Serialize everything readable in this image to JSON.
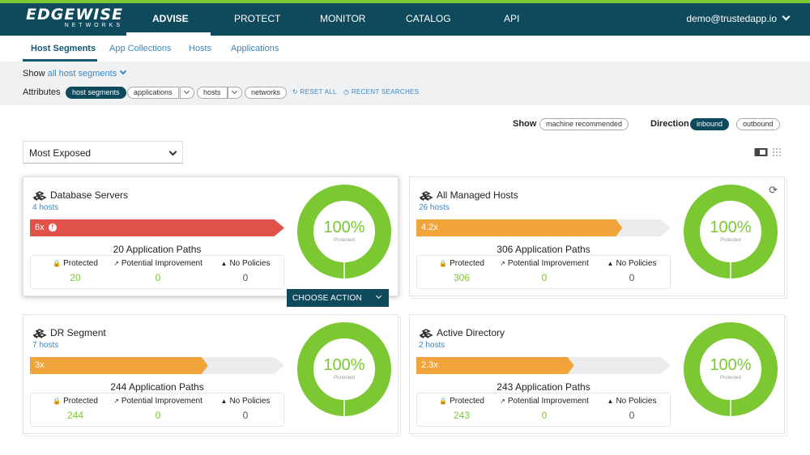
{
  "logo": {
    "name": "EDGEWISE",
    "sub": "NETWORKS"
  },
  "nav": {
    "items": [
      "ADVISE",
      "PROTECT",
      "MONITOR",
      "CATALOG",
      "API"
    ],
    "active": "ADVISE",
    "user": "demo@trustedapp.io"
  },
  "subtabs": [
    "Host Segments",
    "App Collections",
    "Hosts",
    "Applications"
  ],
  "filters": {
    "show_label": "Show",
    "show_value": "all host segments",
    "attributes_label": "Attributes",
    "pills": [
      "host segments",
      "applications",
      "hosts",
      "networks"
    ],
    "reset": "RESET ALL",
    "recent": "RECENT SEARCHES"
  },
  "view_controls": {
    "show_label": "Show",
    "show_option": "machine recommended",
    "direction_label": "Direction",
    "direction_options": [
      "inbound",
      "outbound"
    ],
    "direction_active": "inbound"
  },
  "sort": {
    "selected": "Most Exposed"
  },
  "choose_action": "CHOOSE ACTION",
  "stat_labels": {
    "protected": "Protected",
    "improvement": "Potential Improvement",
    "no_policies": "No Policies"
  },
  "donut_sub": "Protected",
  "colors": {
    "green": "#7bc832",
    "red": "#e0524a",
    "orange": "#f0a43a",
    "navy": "#0f4a5c",
    "link": "#3a87c4"
  },
  "cards": [
    {
      "title": "Database Servers",
      "hosts": "4 hosts",
      "exposure": "6x",
      "exposure_fraction": 1.0,
      "bar_color": "red",
      "paths": "20 Application Paths",
      "protected": "20",
      "improvement": "0",
      "no_policies": "0",
      "percent": "100%"
    },
    {
      "title": "All Managed Hosts",
      "hosts": "26 hosts",
      "exposure": "4.2x",
      "exposure_fraction": 0.81,
      "bar_color": "orange",
      "paths": "306 Application Paths",
      "protected": "306",
      "improvement": "0",
      "no_policies": "0",
      "percent": "100%"
    },
    {
      "title": "DR Segment",
      "hosts": "7 hosts",
      "exposure": "3x",
      "exposure_fraction": 0.7,
      "bar_color": "orange",
      "paths": "244 Application Paths",
      "protected": "244",
      "improvement": "0",
      "no_policies": "0",
      "percent": "100%"
    },
    {
      "title": "Active Directory",
      "hosts": "2 hosts",
      "exposure": "2.3x",
      "exposure_fraction": 0.62,
      "bar_color": "orange",
      "paths": "243 Application Paths",
      "protected": "243",
      "improvement": "0",
      "no_policies": "0",
      "percent": "100%"
    }
  ]
}
